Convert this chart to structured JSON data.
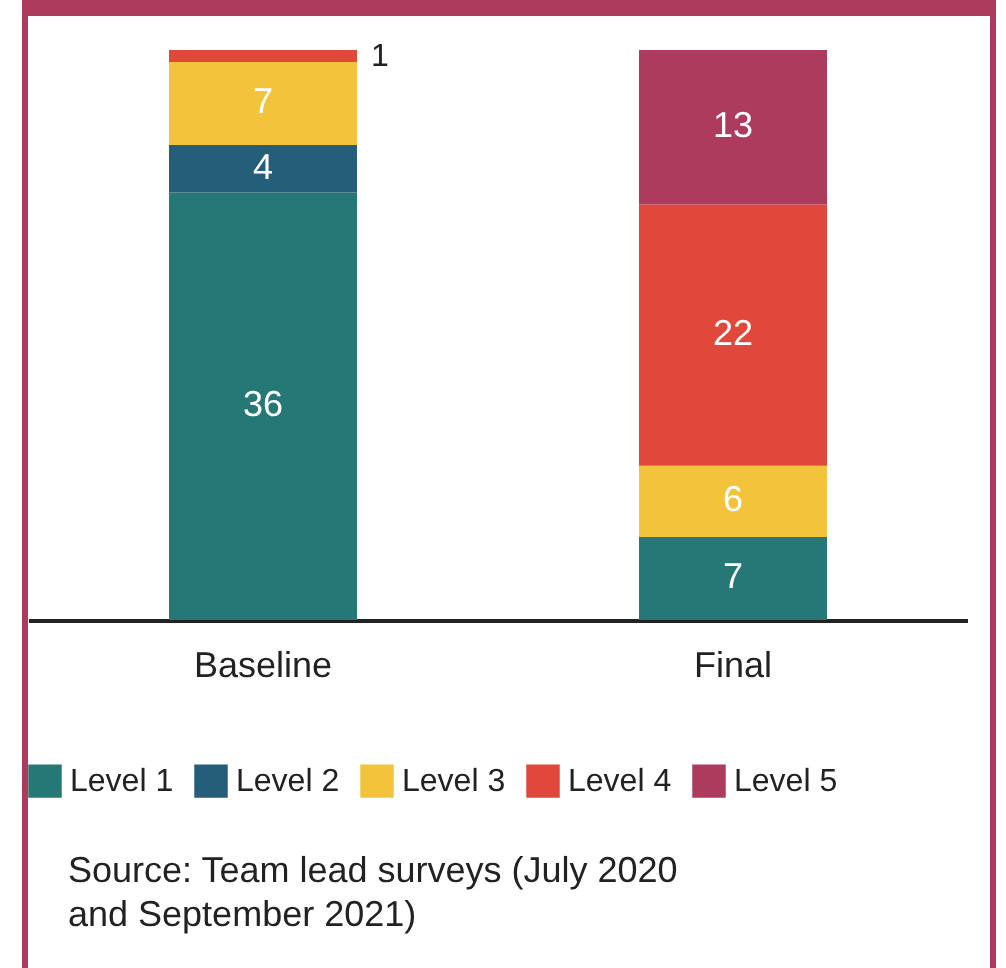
{
  "chart_data": {
    "type": "bar",
    "stacked": true,
    "data_labels": true,
    "legend": "bottom",
    "grid": false,
    "categories": [
      "Baseline",
      "Final"
    ],
    "series": [
      {
        "name": "Level 1",
        "color": "#267877",
        "values": [
          36,
          7
        ]
      },
      {
        "name": "Level 2",
        "color": "#245e78",
        "values": [
          4,
          null
        ]
      },
      {
        "name": "Level 3",
        "color": "#f3c33b",
        "values": [
          7,
          6
        ]
      },
      {
        "name": "Level 4",
        "color": "#e0483b",
        "values": [
          1,
          22
        ]
      },
      {
        "name": "Level 5",
        "color": "#ad3b5e",
        "values": [
          null,
          13
        ]
      }
    ],
    "annotations": [
      "Source: Team lead surveys (July 2020 and September 2021)"
    ]
  }
}
